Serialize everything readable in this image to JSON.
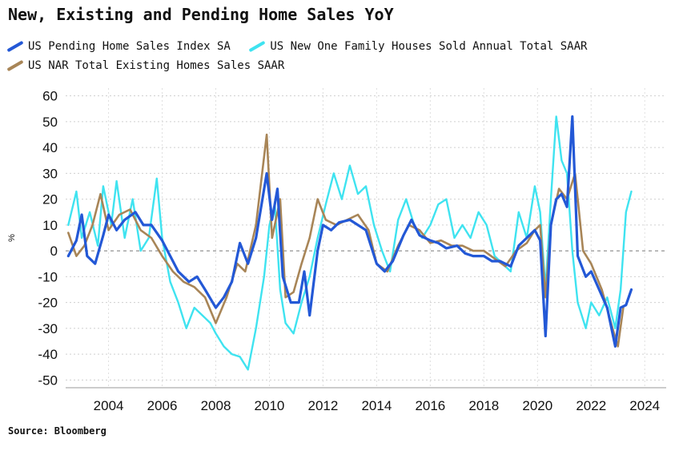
{
  "source": "Source: Bloomberg",
  "chart_data": {
    "type": "line",
    "title": "New, Existing and Pending Home Sales YoY",
    "ylabel": "%",
    "xlim": [
      2002.4,
      2024.8
    ],
    "ylim": [
      -53,
      63
    ],
    "yticks": [
      60,
      50,
      40,
      30,
      20,
      10,
      0,
      -10,
      -20,
      -30,
      -40,
      -50
    ],
    "xticks": [
      2004,
      2006,
      2008,
      2010,
      2012,
      2014,
      2016,
      2018,
      2020,
      2022,
      2024
    ],
    "grid": true,
    "legend_position": "top",
    "series": [
      {
        "name": "US Pending Home Sales Index SA",
        "color": "#2358d6",
        "width": 3.2,
        "points": [
          [
            2002.5,
            -2
          ],
          [
            2002.8,
            4
          ],
          [
            2003.0,
            14
          ],
          [
            2003.2,
            -2
          ],
          [
            2003.5,
            -5
          ],
          [
            2003.8,
            6
          ],
          [
            2004.0,
            14
          ],
          [
            2004.3,
            8
          ],
          [
            2004.6,
            12
          ],
          [
            2005.0,
            15
          ],
          [
            2005.3,
            10
          ],
          [
            2005.6,
            10
          ],
          [
            2006.0,
            4
          ],
          [
            2006.3,
            -2
          ],
          [
            2006.6,
            -8
          ],
          [
            2007.0,
            -12
          ],
          [
            2007.3,
            -10
          ],
          [
            2007.6,
            -15
          ],
          [
            2008.0,
            -22
          ],
          [
            2008.3,
            -18
          ],
          [
            2008.6,
            -12
          ],
          [
            2008.9,
            3
          ],
          [
            2009.2,
            -5
          ],
          [
            2009.5,
            5
          ],
          [
            2009.9,
            30
          ],
          [
            2010.1,
            12
          ],
          [
            2010.3,
            24
          ],
          [
            2010.5,
            -10
          ],
          [
            2010.8,
            -20
          ],
          [
            2011.1,
            -20
          ],
          [
            2011.3,
            -8
          ],
          [
            2011.5,
            -25
          ],
          [
            2011.8,
            0
          ],
          [
            2012.0,
            10
          ],
          [
            2012.3,
            8
          ],
          [
            2012.6,
            11
          ],
          [
            2013.0,
            12
          ],
          [
            2013.3,
            10
          ],
          [
            2013.6,
            8
          ],
          [
            2014.0,
            -5
          ],
          [
            2014.3,
            -8
          ],
          [
            2014.6,
            -4
          ],
          [
            2015.0,
            6
          ],
          [
            2015.3,
            12
          ],
          [
            2015.6,
            6
          ],
          [
            2016.0,
            4
          ],
          [
            2016.3,
            3
          ],
          [
            2016.6,
            1
          ],
          [
            2017.0,
            2
          ],
          [
            2017.3,
            -1
          ],
          [
            2017.6,
            -2
          ],
          [
            2018.0,
            -2
          ],
          [
            2018.3,
            -4
          ],
          [
            2018.6,
            -4
          ],
          [
            2019.0,
            -6
          ],
          [
            2019.3,
            2
          ],
          [
            2019.6,
            5
          ],
          [
            2019.9,
            8
          ],
          [
            2020.1,
            4
          ],
          [
            2020.3,
            -33
          ],
          [
            2020.5,
            10
          ],
          [
            2020.7,
            20
          ],
          [
            2020.9,
            22
          ],
          [
            2021.1,
            17
          ],
          [
            2021.3,
            52
          ],
          [
            2021.5,
            -2
          ],
          [
            2021.8,
            -10
          ],
          [
            2022.0,
            -8
          ],
          [
            2022.3,
            -15
          ],
          [
            2022.6,
            -22
          ],
          [
            2022.9,
            -37
          ],
          [
            2023.1,
            -22
          ],
          [
            2023.3,
            -21
          ],
          [
            2023.5,
            -15
          ]
        ]
      },
      {
        "name": "US New One Family Houses Sold Annual Total SAAR",
        "color": "#3fe3f0",
        "width": 2.4,
        "points": [
          [
            2002.5,
            10
          ],
          [
            2002.8,
            23
          ],
          [
            2003.0,
            5
          ],
          [
            2003.3,
            15
          ],
          [
            2003.6,
            2
          ],
          [
            2003.8,
            25
          ],
          [
            2004.1,
            10
          ],
          [
            2004.3,
            27
          ],
          [
            2004.6,
            5
          ],
          [
            2004.9,
            20
          ],
          [
            2005.2,
            0
          ],
          [
            2005.5,
            5
          ],
          [
            2005.8,
            28
          ],
          [
            2006.0,
            5
          ],
          [
            2006.3,
            -12
          ],
          [
            2006.6,
            -20
          ],
          [
            2006.9,
            -30
          ],
          [
            2007.2,
            -22
          ],
          [
            2007.5,
            -25
          ],
          [
            2007.8,
            -28
          ],
          [
            2008.0,
            -32
          ],
          [
            2008.3,
            -37
          ],
          [
            2008.6,
            -40
          ],
          [
            2008.9,
            -41
          ],
          [
            2009.2,
            -46
          ],
          [
            2009.5,
            -30
          ],
          [
            2009.8,
            -10
          ],
          [
            2010.0,
            10
          ],
          [
            2010.2,
            18
          ],
          [
            2010.4,
            -15
          ],
          [
            2010.6,
            -28
          ],
          [
            2010.9,
            -32
          ],
          [
            2011.2,
            -20
          ],
          [
            2011.5,
            -10
          ],
          [
            2011.8,
            5
          ],
          [
            2012.1,
            18
          ],
          [
            2012.4,
            30
          ],
          [
            2012.7,
            20
          ],
          [
            2013.0,
            33
          ],
          [
            2013.3,
            22
          ],
          [
            2013.6,
            25
          ],
          [
            2013.9,
            10
          ],
          [
            2014.2,
            0
          ],
          [
            2014.5,
            -8
          ],
          [
            2014.8,
            12
          ],
          [
            2015.1,
            20
          ],
          [
            2015.4,
            10
          ],
          [
            2015.7,
            5
          ],
          [
            2016.0,
            10
          ],
          [
            2016.3,
            18
          ],
          [
            2016.6,
            20
          ],
          [
            2016.9,
            5
          ],
          [
            2017.2,
            10
          ],
          [
            2017.5,
            5
          ],
          [
            2017.8,
            15
          ],
          [
            2018.1,
            10
          ],
          [
            2018.4,
            -2
          ],
          [
            2018.7,
            -5
          ],
          [
            2019.0,
            -8
          ],
          [
            2019.3,
            15
          ],
          [
            2019.6,
            5
          ],
          [
            2019.9,
            25
          ],
          [
            2020.1,
            15
          ],
          [
            2020.3,
            -15
          ],
          [
            2020.5,
            20
          ],
          [
            2020.7,
            52
          ],
          [
            2020.9,
            35
          ],
          [
            2021.1,
            30
          ],
          [
            2021.3,
            0
          ],
          [
            2021.5,
            -20
          ],
          [
            2021.8,
            -30
          ],
          [
            2022.0,
            -20
          ],
          [
            2022.3,
            -25
          ],
          [
            2022.6,
            -18
          ],
          [
            2022.9,
            -30
          ],
          [
            2023.1,
            -15
          ],
          [
            2023.3,
            15
          ],
          [
            2023.5,
            23
          ]
        ]
      },
      {
        "name": "US NAR Total Existing Homes Sales SAAR",
        "color": "#a88557",
        "width": 2.6,
        "points": [
          [
            2002.5,
            7
          ],
          [
            2002.8,
            -2
          ],
          [
            2003.1,
            2
          ],
          [
            2003.4,
            10
          ],
          [
            2003.7,
            22
          ],
          [
            2004.0,
            8
          ],
          [
            2004.4,
            14
          ],
          [
            2004.8,
            16
          ],
          [
            2005.2,
            8
          ],
          [
            2005.6,
            5
          ],
          [
            2006.0,
            -2
          ],
          [
            2006.4,
            -8
          ],
          [
            2006.8,
            -12
          ],
          [
            2007.2,
            -14
          ],
          [
            2007.6,
            -18
          ],
          [
            2008.0,
            -28
          ],
          [
            2008.4,
            -18
          ],
          [
            2008.8,
            -5
          ],
          [
            2009.1,
            -8
          ],
          [
            2009.5,
            10
          ],
          [
            2009.9,
            45
          ],
          [
            2010.1,
            5
          ],
          [
            2010.4,
            20
          ],
          [
            2010.6,
            -18
          ],
          [
            2010.9,
            -16
          ],
          [
            2011.2,
            -5
          ],
          [
            2011.5,
            5
          ],
          [
            2011.8,
            20
          ],
          [
            2012.1,
            12
          ],
          [
            2012.5,
            10
          ],
          [
            2012.9,
            12
          ],
          [
            2013.3,
            14
          ],
          [
            2013.7,
            8
          ],
          [
            2014.0,
            -5
          ],
          [
            2014.4,
            -8
          ],
          [
            2014.8,
            2
          ],
          [
            2015.2,
            10
          ],
          [
            2015.6,
            8
          ],
          [
            2016.0,
            3
          ],
          [
            2016.4,
            4
          ],
          [
            2016.8,
            2
          ],
          [
            2017.2,
            2
          ],
          [
            2017.6,
            0
          ],
          [
            2018.0,
            0
          ],
          [
            2018.4,
            -3
          ],
          [
            2018.8,
            -6
          ],
          [
            2019.2,
            0
          ],
          [
            2019.6,
            3
          ],
          [
            2019.9,
            8
          ],
          [
            2020.1,
            10
          ],
          [
            2020.3,
            -18
          ],
          [
            2020.5,
            10
          ],
          [
            2020.8,
            24
          ],
          [
            2021.1,
            20
          ],
          [
            2021.4,
            30
          ],
          [
            2021.7,
            0
          ],
          [
            2022.0,
            -5
          ],
          [
            2022.4,
            -15
          ],
          [
            2022.8,
            -30
          ],
          [
            2023.0,
            -37
          ],
          [
            2023.2,
            -22
          ]
        ]
      }
    ]
  }
}
